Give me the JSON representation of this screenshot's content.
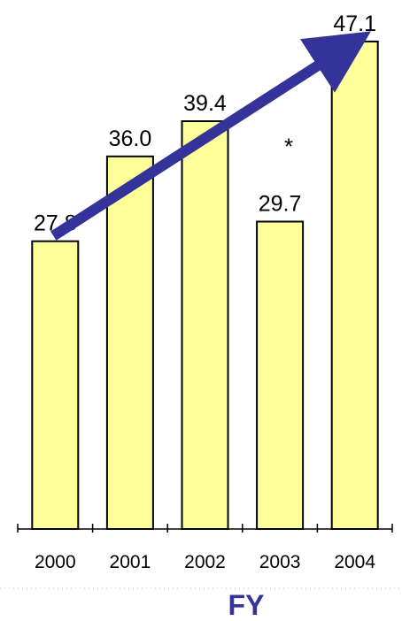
{
  "chart_data": {
    "type": "bar",
    "categories": [
      "2000",
      "2001",
      "2002",
      "2003",
      "2004"
    ],
    "values": [
      27.8,
      36.0,
      39.4,
      29.7,
      47.1
    ],
    "value_labels": [
      "27.8",
      "36.0",
      "39.4",
      "29.7",
      "47.1"
    ],
    "xlabel": "FY",
    "ylabel": "",
    "title": "",
    "ylim": [
      0,
      50
    ],
    "grid": false,
    "annotations": [
      {
        "text": "*",
        "category": "2003"
      }
    ],
    "trend_arrow": {
      "from": "2000",
      "to": "2004"
    },
    "colors": {
      "bar_fill": "#ffff99",
      "bar_stroke": "#000000",
      "arrow": "#333399",
      "xlabel": "#333399"
    }
  }
}
